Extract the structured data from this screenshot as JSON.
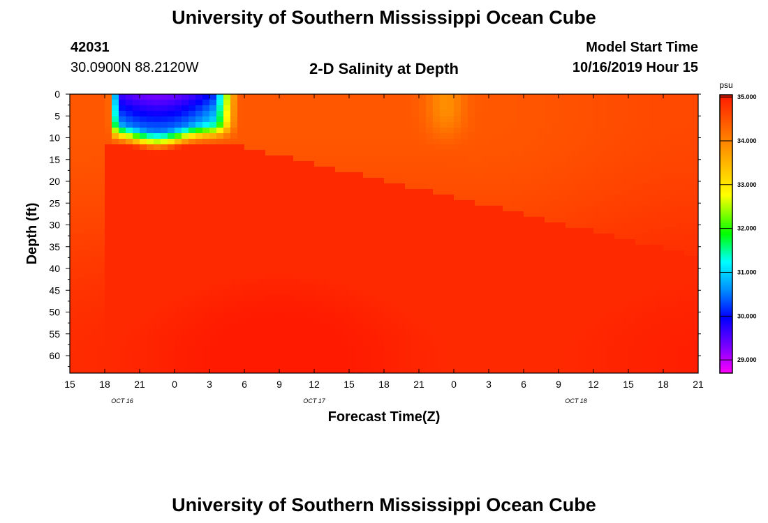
{
  "header": {
    "title": "University of Southern Mississippi Ocean Cube",
    "station_id": "42031",
    "station_coords": "30.0900N 88.2120W",
    "subtitle": "2-D Salinity at Depth",
    "model_start_label": "Model Start Time",
    "model_start_value": "10/16/2019 Hour 15"
  },
  "footer": {
    "title": "University of Southern Mississippi Ocean Cube"
  },
  "chart_data": {
    "type": "heatmap",
    "xlabel": "Forecast Time(Z)",
    "ylabel": "Depth (ft)",
    "x_tick_labels": [
      "15",
      "18",
      "21",
      "0",
      "3",
      "6",
      "9",
      "12",
      "15",
      "18",
      "21",
      "0",
      "3",
      "6",
      "9",
      "12",
      "15",
      "18",
      "21"
    ],
    "x_range_hours": [
      0,
      54
    ],
    "date_labels": [
      {
        "label": "OCT 16",
        "at_tick_index": 1.5
      },
      {
        "label": "OCT 17",
        "at_tick_index": 7
      },
      {
        "label": "OCT 18",
        "at_tick_index": 14.5
      }
    ],
    "y_tick_labels": [
      "0",
      "5",
      "10",
      "15",
      "20",
      "25",
      "30",
      "35",
      "40",
      "45",
      "50",
      "55",
      "60"
    ],
    "y_range": [
      0,
      64
    ],
    "y_inverted": true,
    "colorbar": {
      "unit": "psu",
      "tick_labels": [
        "35.000",
        "34.000",
        "33.000",
        "32.000",
        "31.000",
        "30.000",
        "29.000"
      ],
      "range": [
        28.7,
        35.05
      ]
    },
    "grid": false,
    "legend": "colorbar-right",
    "features": [
      {
        "description": "low salinity core",
        "time_hours": [
          5,
          12
        ],
        "depth_ft": [
          0,
          12
        ],
        "min_psu": 29.2
      },
      {
        "description": "fresher surface lens",
        "time_hours": [
          31,
          33.5
        ],
        "depth_ft": [
          0,
          14
        ],
        "min_psu": 34.3
      }
    ]
  },
  "colors": {
    "background": "#ffffff",
    "high_salinity": "#ff2a00",
    "low_salinity": "#ff00ff"
  }
}
